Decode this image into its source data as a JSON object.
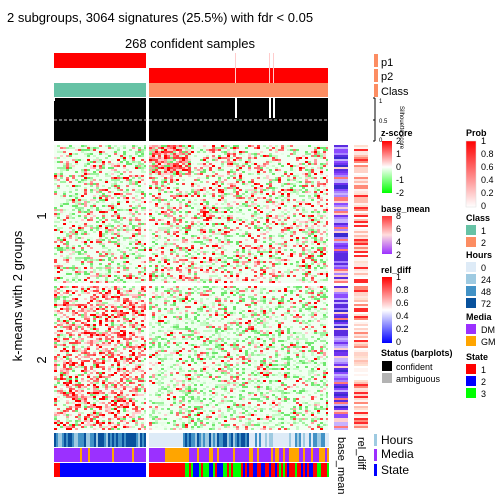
{
  "header": {
    "title": "2 subgroups, 3064 signatures (25.5%) with fdr < 0.05",
    "subtitle": "268 confident samples",
    "row_title": "k-means with 2 groups"
  },
  "chart_data": {
    "type": "heatmap",
    "n_samples": 268,
    "n_signatures": 3064,
    "signature_fraction": "25.5%",
    "fdr_threshold": 0.05,
    "column_groups": [
      {
        "name": "1",
        "fraction": 0.34
      },
      {
        "name": "2",
        "fraction": 0.66
      }
    ],
    "row_groups": [
      {
        "label": "1",
        "fraction": 0.48
      },
      {
        "label": "2",
        "fraction": 0.52
      }
    ],
    "top_annotations": [
      {
        "id": "p1",
        "label": "p1"
      },
      {
        "id": "p2",
        "label": "p2"
      },
      {
        "id": "class",
        "label": "Class"
      }
    ],
    "silhouette": {
      "label": "Silhouette score",
      "ticks": [
        "1",
        "0.5",
        "0"
      ],
      "threshold": 0.5
    },
    "row_annotation_labels": [
      "base_mean",
      "rel_diff"
    ],
    "bottom_annotations": [
      "Hours",
      "Media",
      "State"
    ],
    "legends": {
      "zscore": {
        "title": "z-score",
        "ticks": [
          "2",
          "1",
          "0",
          "-1",
          "-2"
        ],
        "colors": [
          "#ff0000",
          "#ffffff",
          "#00ff00"
        ]
      },
      "base_mean": {
        "title": "base_mean",
        "ticks": [
          "8",
          "6",
          "4",
          "2"
        ],
        "colors": [
          "#ff3333",
          "#ffdede",
          "#9b30ff"
        ]
      },
      "rel_diff": {
        "title": "rel_diff",
        "ticks": [
          "1",
          "0.8",
          "0.6",
          "0.4",
          "0.2",
          "0"
        ],
        "colors": [
          "#ff0000",
          "#ffffff",
          "#0000ff"
        ]
      },
      "status": {
        "title": "Status (barplots)",
        "items": [
          {
            "label": "confident",
            "color": "#000000"
          },
          {
            "label": "ambiguous",
            "color": "#b3b3b3"
          }
        ]
      },
      "prob": {
        "title": "Prob",
        "ticks": [
          "1",
          "0.8",
          "0.6",
          "0.4",
          "0.2",
          "0"
        ],
        "colors": [
          "#ff0000",
          "#ffffff"
        ]
      },
      "class": {
        "title": "Class",
        "items": [
          {
            "label": "1",
            "color": "#66c2a5"
          },
          {
            "label": "2",
            "color": "#fc8d62"
          }
        ]
      },
      "hours": {
        "title": "Hours",
        "items": [
          {
            "label": "0",
            "color": "#deebf7"
          },
          {
            "label": "24",
            "color": "#9ecae1"
          },
          {
            "label": "48",
            "color": "#4292c6"
          },
          {
            "label": "72",
            "color": "#08519c"
          }
        ]
      },
      "media": {
        "title": "Media",
        "items": [
          {
            "label": "DM",
            "color": "#9b30ff"
          },
          {
            "label": "GM",
            "color": "#ffa500"
          }
        ]
      },
      "state": {
        "title": "State",
        "items": [
          {
            "label": "1",
            "color": "#ff0000"
          },
          {
            "label": "2",
            "color": "#0000ff"
          },
          {
            "label": "3",
            "color": "#00ff00"
          }
        ]
      }
    }
  }
}
